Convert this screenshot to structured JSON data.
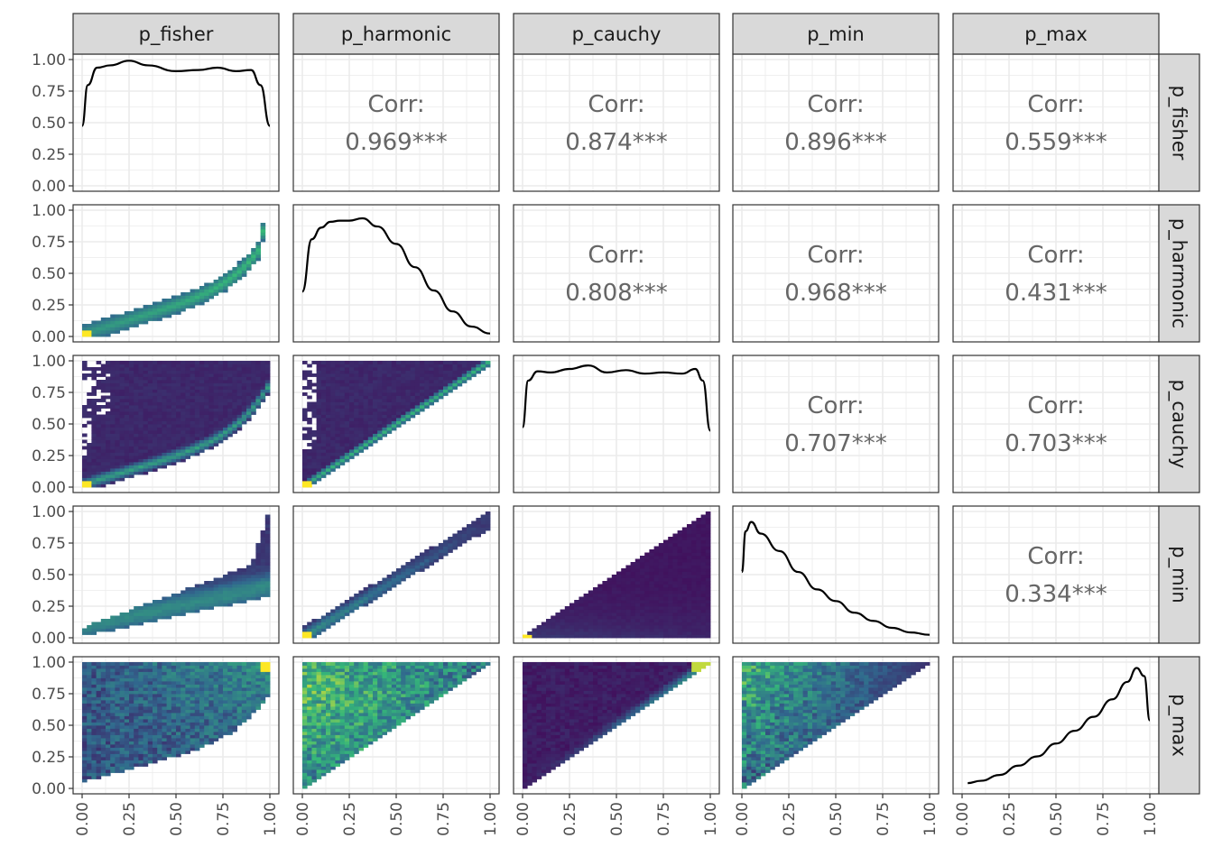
{
  "chart_data": {
    "type": "scatter-matrix",
    "variables": [
      "p_fisher",
      "p_harmonic",
      "p_cauchy",
      "p_min",
      "p_max"
    ],
    "axis_range": [
      0,
      1
    ],
    "ticks": [
      "0.00",
      "0.25",
      "0.50",
      "0.75",
      "1.00"
    ],
    "grid": true,
    "correlation_label": "Corr:",
    "correlations": [
      {
        "row": "p_fisher",
        "col": "p_harmonic",
        "value": "0.969***"
      },
      {
        "row": "p_fisher",
        "col": "p_cauchy",
        "value": "0.874***"
      },
      {
        "row": "p_fisher",
        "col": "p_min",
        "value": "0.896***"
      },
      {
        "row": "p_fisher",
        "col": "p_max",
        "value": "0.559***"
      },
      {
        "row": "p_harmonic",
        "col": "p_cauchy",
        "value": "0.808***"
      },
      {
        "row": "p_harmonic",
        "col": "p_min",
        "value": "0.968***"
      },
      {
        "row": "p_harmonic",
        "col": "p_max",
        "value": "0.431***"
      },
      {
        "row": "p_cauchy",
        "col": "p_min",
        "value": "0.707***"
      },
      {
        "row": "p_cauchy",
        "col": "p_max",
        "value": "0.703***"
      },
      {
        "row": "p_min",
        "col": "p_max",
        "value": "0.334***"
      }
    ],
    "densities": {
      "p_fisher": {
        "x": [
          0,
          0.03,
          0.08,
          0.15,
          0.25,
          0.35,
          0.5,
          0.62,
          0.72,
          0.82,
          0.9,
          0.95,
          1.0
        ],
        "y": [
          0.5,
          0.85,
          1.0,
          1.02,
          1.06,
          1.02,
          0.97,
          0.98,
          1.0,
          0.97,
          0.98,
          0.85,
          0.5
        ]
      },
      "p_harmonic": {
        "x": [
          0,
          0.05,
          0.1,
          0.15,
          0.2,
          0.25,
          0.32,
          0.4,
          0.5,
          0.6,
          0.7,
          0.8,
          0.9,
          1.0
        ],
        "y": [
          0.37,
          0.82,
          0.92,
          0.97,
          0.98,
          0.98,
          1.0,
          0.93,
          0.78,
          0.58,
          0.38,
          0.2,
          0.07,
          0.01
        ]
      },
      "p_cauchy": {
        "x": [
          0,
          0.03,
          0.08,
          0.15,
          0.25,
          0.35,
          0.45,
          0.55,
          0.65,
          0.75,
          0.85,
          0.92,
          0.96,
          1.0
        ],
        "y": [
          0.5,
          0.9,
          0.98,
          0.97,
          1.0,
          1.03,
          0.97,
          0.99,
          0.96,
          0.97,
          0.96,
          1.0,
          0.9,
          0.47
        ]
      },
      "p_min": {
        "x": [
          0,
          0.02,
          0.05,
          0.1,
          0.2,
          0.3,
          0.4,
          0.5,
          0.6,
          0.7,
          0.8,
          0.9,
          1.0
        ],
        "y": [
          0.55,
          0.9,
          0.98,
          0.88,
          0.73,
          0.55,
          0.4,
          0.3,
          0.2,
          0.13,
          0.07,
          0.03,
          0.01
        ]
      },
      "p_max": {
        "x": [
          0.03,
          0.1,
          0.2,
          0.3,
          0.4,
          0.5,
          0.6,
          0.7,
          0.8,
          0.88,
          0.93,
          0.97,
          1.0
        ],
        "y": [
          0.03,
          0.05,
          0.1,
          0.18,
          0.26,
          0.37,
          0.48,
          0.6,
          0.75,
          0.9,
          1.02,
          0.95,
          0.57
        ]
      }
    },
    "heatmap_colors": [
      "#440154",
      "#31688e",
      "#35b779",
      "#fde725"
    ]
  }
}
